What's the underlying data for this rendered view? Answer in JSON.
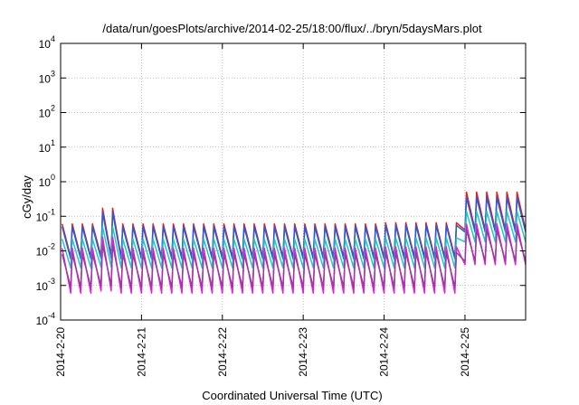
{
  "chart_data": {
    "type": "line",
    "title": "/data/run/goesPlots/archive/2014-02-25/18:00/flux/../bryn/5daysMars.plot",
    "xlabel": "Coordinated Universal Time (UTC)",
    "ylabel": "cGy/day",
    "yscale": "log",
    "ylim": [
      0.0001,
      10000
    ],
    "xlim": [
      "2014-02-20 00:00",
      "2014-02-25 18:00"
    ],
    "x_tick_labels": [
      "2014-2-20",
      "2014-2-21",
      "2014-2-22",
      "2014-2-23",
      "2014-2-24",
      "2014-2-25"
    ],
    "y_tick_labels": [
      {
        "base": "10",
        "exp": "-4"
      },
      {
        "base": "10",
        "exp": "-3"
      },
      {
        "base": "10",
        "exp": "-2"
      },
      {
        "base": "10",
        "exp": "-1"
      },
      {
        "base": "10",
        "exp": "0"
      },
      {
        "base": "10",
        "exp": "1"
      },
      {
        "base": "10",
        "exp": "2"
      },
      {
        "base": "10",
        "exp": "3"
      },
      {
        "base": "10",
        "exp": "4"
      }
    ],
    "grid": true,
    "sawtooth_period_hours": 3,
    "series": [
      {
        "color": "#e81c1c",
        "peaks": [
          0.06,
          0.17,
          0.06,
          0.06,
          0.06,
          0.065,
          0.5
        ],
        "troughs": [
          0.0065,
          0.007,
          0.0065,
          0.0065,
          0.0065,
          0.0065,
          0.04
        ]
      },
      {
        "color": "#1f5de0",
        "peaks": [
          0.05,
          0.13,
          0.05,
          0.05,
          0.05,
          0.055,
          0.35
        ],
        "troughs": [
          0.0058,
          0.006,
          0.0058,
          0.0058,
          0.0058,
          0.0058,
          0.035
        ]
      },
      {
        "color": "#1fc8c8",
        "peaks": [
          0.022,
          0.05,
          0.022,
          0.022,
          0.022,
          0.024,
          0.14
        ],
        "troughs": [
          0.0032,
          0.0034,
          0.0032,
          0.0032,
          0.0032,
          0.0032,
          0.018
        ]
      },
      {
        "color": "#e020d8",
        "peaks": [
          0.012,
          0.025,
          0.012,
          0.012,
          0.012,
          0.013,
          0.06
        ],
        "troughs": [
          0.0006,
          0.0007,
          0.0006,
          0.0006,
          0.0006,
          0.0006,
          0.004
        ]
      },
      {
        "color": "#9c3aa0",
        "peaks": [
          0.008,
          0.015,
          0.008,
          0.008,
          0.008,
          0.009,
          0.04
        ],
        "troughs": [
          0.0009,
          0.001,
          0.0009,
          0.0009,
          0.0009,
          0.0009,
          0.005
        ]
      }
    ]
  }
}
